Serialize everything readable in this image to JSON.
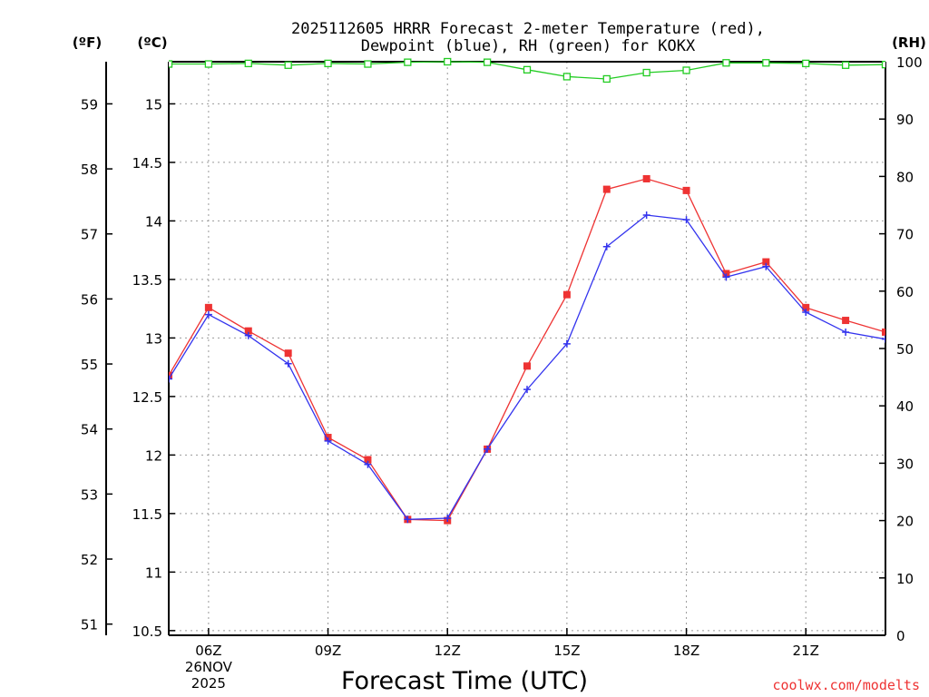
{
  "chart_data": {
    "type": "line",
    "title_lines": [
      "2025112605 HRRR Forecast 2-meter Temperature (red),",
      "Dewpoint (blue), RH (green) for KOKX"
    ],
    "xlabel": "Forecast Time (UTC)",
    "credit": "coolwx.com/modelts",
    "unit_labels": {
      "fahrenheit": "(ºF)",
      "celsius": "(ºC)",
      "rh": "(RH)"
    },
    "x_hours": [
      5,
      6,
      7,
      8,
      9,
      10,
      11,
      12,
      13,
      14,
      15,
      16,
      17,
      18,
      19,
      20,
      21,
      22,
      23
    ],
    "x_range": [
      5,
      23
    ],
    "x_ticks": [
      {
        "hour": 6,
        "label": "06Z",
        "sub": [
          "26NOV",
          "2025"
        ]
      },
      {
        "hour": 9,
        "label": "09Z",
        "sub": []
      },
      {
        "hour": 12,
        "label": "12Z",
        "sub": []
      },
      {
        "hour": 15,
        "label": "15Z",
        "sub": []
      },
      {
        "hour": 18,
        "label": "18Z",
        "sub": []
      },
      {
        "hour": 21,
        "label": "21Z",
        "sub": []
      }
    ],
    "celsius_axis": {
      "range": [
        10.46,
        15.36
      ],
      "ticks": [
        10.5,
        11,
        11.5,
        12,
        12.5,
        13,
        13.5,
        14,
        14.5,
        15
      ],
      "tick_labels": [
        "10.5",
        "11",
        "11.5",
        "12",
        "12.5",
        "13",
        "13.5",
        "14",
        "14.5",
        "15"
      ]
    },
    "fahrenheit_axis": {
      "ticks": [
        51,
        52,
        53,
        54,
        55,
        56,
        57,
        58,
        59
      ],
      "tick_labels": [
        "51",
        "52",
        "53",
        "54",
        "55",
        "56",
        "57",
        "58",
        "59"
      ]
    },
    "rh_axis": {
      "range": [
        0,
        100
      ],
      "ticks": [
        0,
        10,
        20,
        30,
        40,
        50,
        60,
        70,
        80,
        90,
        100
      ],
      "tick_labels": [
        "0",
        "10",
        "20",
        "30",
        "40",
        "50",
        "60",
        "70",
        "80",
        "90",
        "100"
      ]
    },
    "series": [
      {
        "name": "Temperature",
        "axis": "celsius",
        "color": "#ee3333",
        "marker": "filled-square",
        "values": [
          12.68,
          13.26,
          13.06,
          12.87,
          12.15,
          11.96,
          11.45,
          11.44,
          12.05,
          12.76,
          13.37,
          14.27,
          14.36,
          14.26,
          13.55,
          13.65,
          13.26,
          13.15,
          13.05
        ]
      },
      {
        "name": "Dewpoint",
        "axis": "celsius",
        "color": "#3333ee",
        "marker": "plus",
        "values": [
          12.65,
          13.2,
          13.02,
          12.78,
          12.12,
          11.92,
          11.45,
          11.46,
          12.05,
          12.56,
          12.95,
          13.78,
          14.05,
          14.01,
          13.52,
          13.61,
          13.22,
          13.05,
          12.99
        ]
      },
      {
        "name": "RH",
        "axis": "rh",
        "color": "#22cc22",
        "marker": "open-square",
        "values": [
          99.6,
          99.6,
          99.7,
          99.4,
          99.7,
          99.6,
          99.9,
          100,
          99.9,
          98.6,
          97.4,
          97.0,
          98.1,
          98.5,
          99.8,
          99.8,
          99.7,
          99.4,
          99.5
        ]
      }
    ]
  }
}
